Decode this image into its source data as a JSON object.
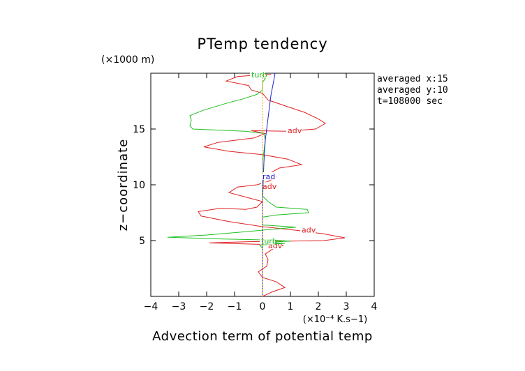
{
  "chart_data": {
    "type": "line",
    "title": "PTemp tendency",
    "xlabel": "Advection term of potential temp",
    "x_units": "(×10⁻⁴ K.s−1)",
    "ylabel": "z−coordinate",
    "y_units": "(×1000 m)",
    "xlim": [
      -4,
      4
    ],
    "ylim": [
      0,
      20
    ],
    "x_ticks": [
      "−4",
      "−3",
      "−2",
      "−1",
      "0",
      "1",
      "2",
      "3",
      "4"
    ],
    "x_tick_values": [
      -4,
      -3,
      -2,
      -1,
      0,
      1,
      2,
      3,
      4
    ],
    "y_ticks": [
      "5",
      "10",
      "15"
    ],
    "y_tick_values": [
      5,
      10,
      15
    ],
    "info_lines": [
      "averaged  x:15",
      "averaged  y:10",
      "t=108000 sec"
    ],
    "colors": {
      "adv": "#e02020",
      "turb": "#20c020",
      "rad": "#2020d0",
      "zero": "#e8a000"
    },
    "series": [
      {
        "name": "adv",
        "color": "#e02020",
        "labels": [
          {
            "text": "adv",
            "x": 0.9,
            "y": 14.8
          },
          {
            "text": "adv",
            "x": 0.0,
            "y": 9.8
          },
          {
            "text": "adv",
            "x": 1.4,
            "y": 5.9
          },
          {
            "text": "adv",
            "x": 0.2,
            "y": 4.5
          }
        ],
        "points": [
          [
            0.0,
            0.0
          ],
          [
            0.35,
            0.4
          ],
          [
            0.8,
            0.8
          ],
          [
            0.5,
            1.3
          ],
          [
            0.0,
            1.7
          ],
          [
            -0.15,
            2.2
          ],
          [
            0.15,
            2.7
          ],
          [
            0.2,
            3.3
          ],
          [
            0.1,
            3.8
          ],
          [
            0.4,
            4.3
          ],
          [
            0.75,
            4.55
          ],
          [
            0.1,
            4.65
          ],
          [
            -1.9,
            4.8
          ],
          [
            -0.5,
            4.9
          ],
          [
            2.2,
            5.0
          ],
          [
            2.95,
            5.25
          ],
          [
            2.2,
            5.6
          ],
          [
            1.3,
            5.9
          ],
          [
            0.0,
            6.25
          ],
          [
            -1.2,
            6.7
          ],
          [
            -2.2,
            7.2
          ],
          [
            -2.3,
            7.6
          ],
          [
            -1.5,
            7.9
          ],
          [
            -0.6,
            7.8
          ],
          [
            -0.2,
            8.0
          ],
          [
            0.0,
            8.5
          ],
          [
            -0.6,
            8.9
          ],
          [
            -1.2,
            9.3
          ],
          [
            -0.9,
            9.8
          ],
          [
            -0.2,
            10.0
          ],
          [
            0.2,
            10.3
          ],
          [
            0.5,
            10.7
          ],
          [
            0.3,
            11.1
          ],
          [
            0.6,
            11.5
          ],
          [
            1.4,
            11.8
          ],
          [
            0.9,
            12.3
          ],
          [
            0.0,
            12.7
          ],
          [
            -1.2,
            13.0
          ],
          [
            -2.1,
            13.4
          ],
          [
            -1.6,
            13.8
          ],
          [
            -0.3,
            14.2
          ],
          [
            0.1,
            14.6
          ],
          [
            -0.4,
            14.85
          ],
          [
            0.9,
            14.8
          ],
          [
            1.9,
            15.0
          ],
          [
            2.25,
            15.5
          ],
          [
            2.0,
            15.9
          ],
          [
            1.5,
            16.5
          ],
          [
            0.9,
            17.0
          ],
          [
            0.2,
            17.6
          ],
          [
            0.0,
            18.2
          ],
          [
            -0.4,
            18.5
          ],
          [
            -0.5,
            18.9
          ],
          [
            -1.3,
            19.3
          ],
          [
            -0.9,
            19.7
          ],
          [
            -0.1,
            19.85
          ],
          [
            0.3,
            19.9
          ]
        ]
      },
      {
        "name": "turb",
        "color": "#20c020",
        "labels": [
          {
            "text": "turb",
            "x": -0.4,
            "y": 19.8
          },
          {
            "text": "turb",
            "x": -0.05,
            "y": 4.9
          }
        ],
        "points": [
          [
            0.0,
            0.0
          ],
          [
            0.0,
            3.8
          ],
          [
            0.0,
            4.3
          ],
          [
            -0.1,
            4.6
          ],
          [
            0.8,
            4.75
          ],
          [
            0.2,
            4.85
          ],
          [
            1.0,
            4.95
          ],
          [
            0.3,
            5.05
          ],
          [
            -1.5,
            5.15
          ],
          [
            -3.4,
            5.3
          ],
          [
            -2.0,
            5.5
          ],
          [
            -0.6,
            5.8
          ],
          [
            1.2,
            6.2
          ],
          [
            0.0,
            6.4
          ],
          [
            0.0,
            7.1
          ],
          [
            0.5,
            7.3
          ],
          [
            1.65,
            7.5
          ],
          [
            1.6,
            7.8
          ],
          [
            0.5,
            8.0
          ],
          [
            0.2,
            8.5
          ],
          [
            0.0,
            9.0
          ],
          [
            0.0,
            12.0
          ],
          [
            0.05,
            13.0
          ],
          [
            0.1,
            14.0
          ],
          [
            0.05,
            14.6
          ],
          [
            -0.6,
            14.8
          ],
          [
            -2.5,
            15.0
          ],
          [
            -2.6,
            15.3
          ],
          [
            -2.55,
            15.8
          ],
          [
            -2.6,
            16.2
          ],
          [
            -2.1,
            16.7
          ],
          [
            -1.3,
            17.3
          ],
          [
            -0.7,
            17.7
          ],
          [
            -0.2,
            18.1
          ],
          [
            0.0,
            18.5
          ],
          [
            0.0,
            19.2
          ],
          [
            0.1,
            19.5
          ],
          [
            -0.1,
            19.8
          ],
          [
            0.1,
            19.95
          ]
        ]
      },
      {
        "name": "rad",
        "color": "#2020d0",
        "labels": [
          {
            "text": "rad",
            "x": 0.0,
            "y": 10.7
          }
        ],
        "points": [
          [
            0.0,
            0.0
          ],
          [
            0.0,
            4.0
          ],
          [
            0.0,
            8.0
          ],
          [
            0.02,
            10.0
          ],
          [
            0.05,
            12.0
          ],
          [
            0.1,
            14.0
          ],
          [
            0.2,
            16.0
          ],
          [
            0.3,
            18.0
          ],
          [
            0.4,
            19.3
          ],
          [
            0.45,
            20.0
          ]
        ]
      },
      {
        "name": "zero",
        "color": "#e8a000",
        "labels": [],
        "points": [
          [
            0.0,
            0.0
          ],
          [
            0.0,
            20.0
          ]
        ]
      }
    ]
  }
}
